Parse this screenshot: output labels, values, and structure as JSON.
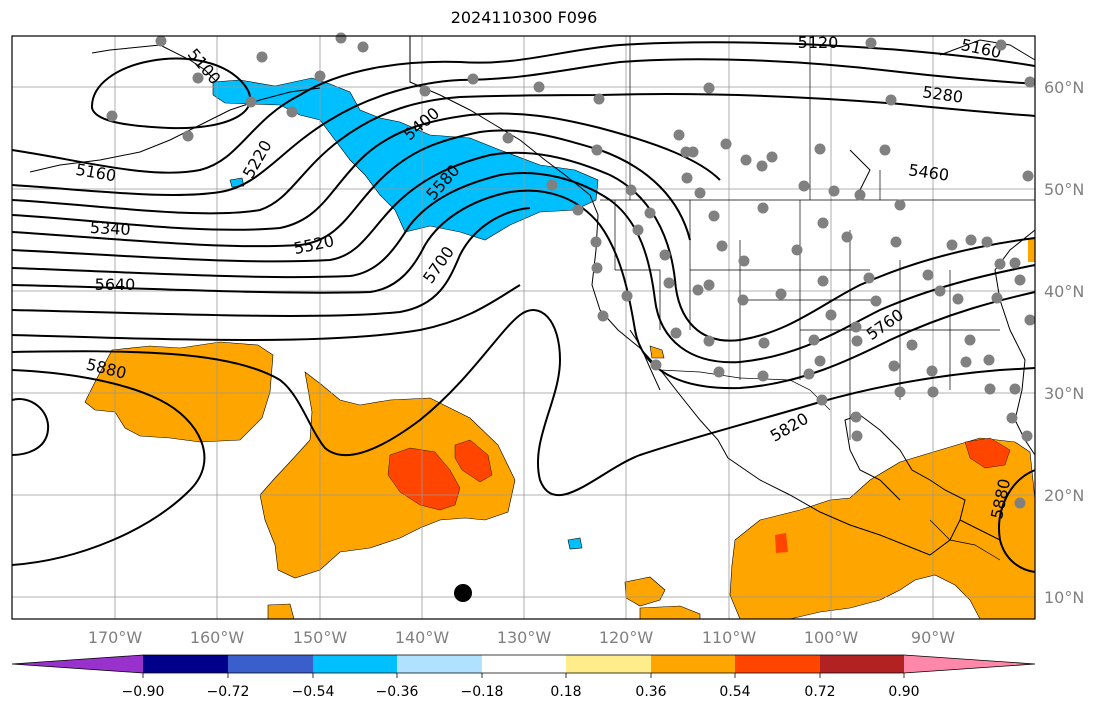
{
  "title": "2024110300 F096",
  "map": {
    "longitude_labels": [
      "170°W",
      "160°W",
      "150°W",
      "140°W",
      "130°W",
      "120°W",
      "110°W",
      "100°W",
      "90°W"
    ],
    "latitude_labels": [
      "60°N",
      "50°N",
      "40°N",
      "30°N",
      "20°N",
      "10°N"
    ],
    "contour_labels": [
      "5100",
      "5160",
      "5220",
      "5400",
      "5580",
      "5700",
      "5520",
      "5340",
      "5640",
      "5880",
      "5120",
      "5160",
      "5280",
      "5460",
      "5760",
      "5820",
      "5880"
    ]
  },
  "colorbar": {
    "tick_labels": [
      "−0.90",
      "−0.72",
      "−0.54",
      "−0.36",
      "−0.18",
      "0.18",
      "0.36",
      "0.54",
      "0.72",
      "0.90"
    ],
    "colors": [
      "#9932cc",
      "#00008b",
      "#3a5fcd",
      "#00bfff",
      "#b0e2ff",
      "#ffffff",
      "#ffec8b",
      "#ffa500",
      "#ff4500",
      "#b22222",
      "#ff88aa"
    ]
  },
  "colors": {
    "frame": "#000000",
    "grid": "#999999",
    "station": "#808080",
    "negative_fill": "#00bfff",
    "positive_fill": "#ffa500",
    "strong_positive_fill": "#ff4500"
  }
}
